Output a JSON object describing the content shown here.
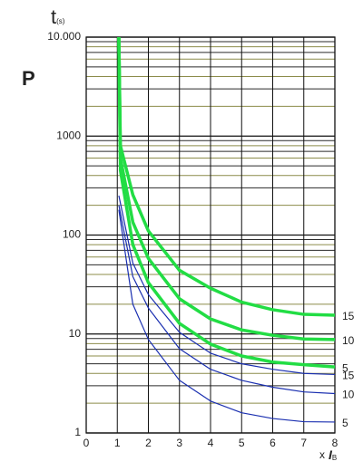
{
  "chart_data": {
    "type": "line",
    "ylabel": "t",
    "ylabel_sub": "(s)",
    "annotation": "P",
    "xlabel": "x",
    "xlabel_symbol": "I",
    "xlabel_sub": "B",
    "log_y": true,
    "grid": true,
    "xlim": [
      0,
      8
    ],
    "xticks": [
      0,
      1,
      2,
      3,
      4,
      5,
      6,
      7,
      8
    ],
    "ylim": [
      1,
      10000
    ],
    "yticks": [
      1,
      10,
      100,
      1000,
      {
        "value": 10000,
        "label": "10.000"
      }
    ],
    "yminor": [
      2,
      3,
      4,
      5,
      6,
      7,
      8,
      9,
      20,
      30,
      40,
      50,
      60,
      70,
      80,
      90,
      200,
      300,
      400,
      500,
      600,
      700,
      800,
      900,
      2000,
      3000,
      4000,
      5000,
      6000,
      7000,
      8000,
      9000
    ],
    "series": [
      {
        "name": "15",
        "color": "#22dd44",
        "line_width": 3.5,
        "x": [
          1.05,
          1.1,
          1.5,
          2,
          3,
          4,
          5,
          6,
          7,
          8
        ],
        "values": [
          10000,
          800,
          255,
          110,
          44,
          29,
          21,
          17.6,
          15.8,
          15.5
        ]
      },
      {
        "name": "10",
        "color": "#22dd44",
        "line_width": 3.5,
        "x": [
          1.05,
          1.1,
          1.5,
          2,
          3,
          4,
          5,
          6,
          7,
          8
        ],
        "values": [
          10000,
          600,
          135,
          58,
          22.7,
          14.2,
          11,
          9.7,
          8.9,
          8.8
        ]
      },
      {
        "name": "5",
        "color": "#22dd44",
        "line_width": 3.5,
        "x": [
          1.05,
          1.1,
          1.5,
          2,
          3,
          4,
          5,
          6,
          7,
          8
        ],
        "values": [
          10000,
          450,
          80,
          33,
          12.8,
          7.9,
          6,
          5.2,
          4.9,
          4.65
        ]
      },
      {
        "name": "15",
        "color": "#1a2fb0",
        "line_width": 1.2,
        "x": [
          1.05,
          1.5,
          2,
          3,
          4,
          5,
          6,
          7,
          8
        ],
        "values": [
          250,
          52,
          25,
          10.4,
          6.4,
          5,
          4.4,
          4,
          3.9
        ]
      },
      {
        "name": "10",
        "color": "#1a2fb0",
        "line_width": 1.2,
        "x": [
          1.05,
          1.5,
          2,
          3,
          4,
          5,
          6,
          7,
          8
        ],
        "values": [
          200,
          38,
          18.3,
          7.1,
          4.4,
          3.4,
          2.9,
          2.6,
          2.5
        ]
      },
      {
        "name": "5",
        "color": "#1a2fb0",
        "line_width": 1.2,
        "x": [
          1.05,
          1.5,
          2,
          3,
          4,
          5,
          6,
          7,
          8
        ],
        "values": [
          180,
          20,
          8.8,
          3.4,
          2.1,
          1.6,
          1.4,
          1.3,
          1.29
        ]
      }
    ]
  }
}
